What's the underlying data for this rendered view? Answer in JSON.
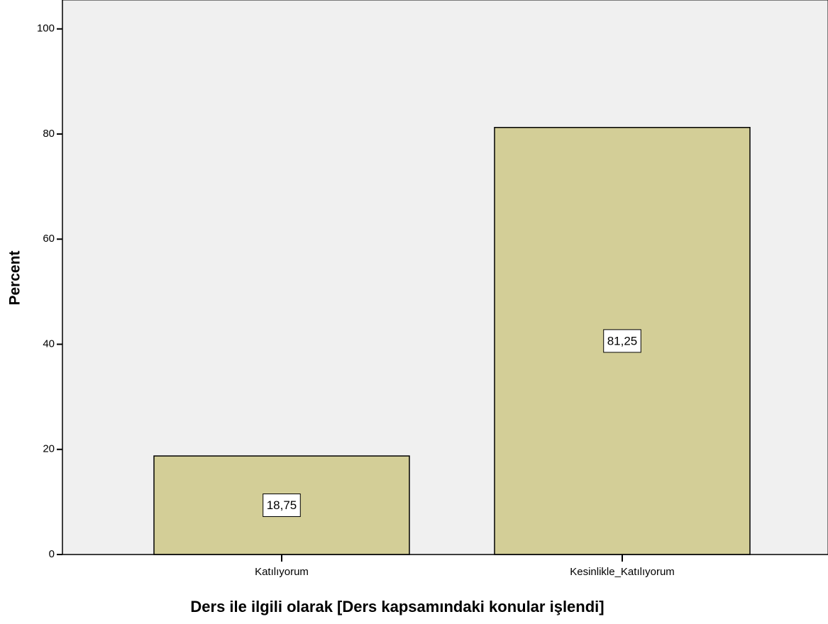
{
  "chart_data": {
    "type": "bar",
    "categories": [
      "Katılıyorum",
      "Kesinlikle_Katılıyorum"
    ],
    "values": [
      18.75,
      81.25
    ],
    "value_labels": [
      "18,75",
      "81,25"
    ],
    "color": "#d3ce97",
    "x_label": "Ders ile ilgili olarak [Ders kapsamındaki konular işlendi]",
    "y_label": "Percent",
    "ylim": [
      0,
      105.5
    ],
    "yticks": [
      0,
      20,
      40,
      60,
      80,
      100
    ]
  }
}
